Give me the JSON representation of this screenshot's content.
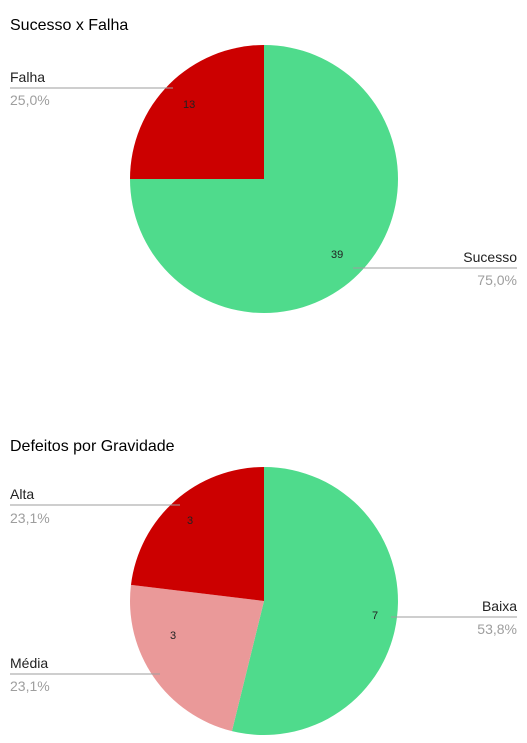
{
  "chart_data": [
    {
      "type": "pie",
      "title": "Sucesso x Falha",
      "slices": [
        {
          "label": "Sucesso",
          "value": 39,
          "percent": "75,0%",
          "color": "#4fdb8c"
        },
        {
          "label": "Falha",
          "value": 13,
          "percent": "25,0%",
          "color": "#cc0000"
        }
      ],
      "legend": "labels-beside-slices"
    },
    {
      "type": "pie",
      "title": "Defeitos por Gravidade",
      "slices": [
        {
          "label": "Baixa",
          "value": 7,
          "percent": "53,8%",
          "color": "#4fdb8c"
        },
        {
          "label": "Média",
          "value": 3,
          "percent": "23,1%",
          "color": "#ea9999"
        },
        {
          "label": "Alta",
          "value": 3,
          "percent": "23,1%",
          "color": "#cc0000"
        }
      ],
      "legend": "labels-beside-slices"
    }
  ]
}
